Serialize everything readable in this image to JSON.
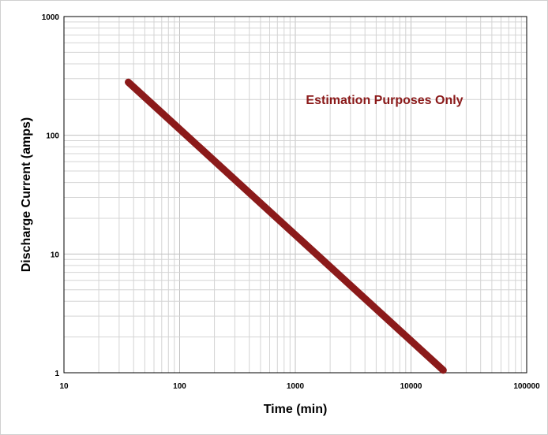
{
  "chart_data": {
    "type": "line",
    "xlabel": "Time (min)",
    "ylabel": "Discharge Current (amps)",
    "x_scale": "log",
    "y_scale": "log",
    "xlim": [
      10,
      100000
    ],
    "ylim": [
      1,
      1000
    ],
    "x_ticks": [
      "10",
      "100",
      "1000",
      "10000",
      "100000"
    ],
    "y_ticks": [
      "1",
      "10",
      "100",
      "1000"
    ],
    "grid": true,
    "annotation": "Estimation Purposes Only",
    "annotation_color": "#8b1a1a",
    "series": [
      {
        "color": "#8b1a1a",
        "x": [
          36,
          19000
        ],
        "y": [
          280,
          1.05
        ]
      }
    ]
  }
}
